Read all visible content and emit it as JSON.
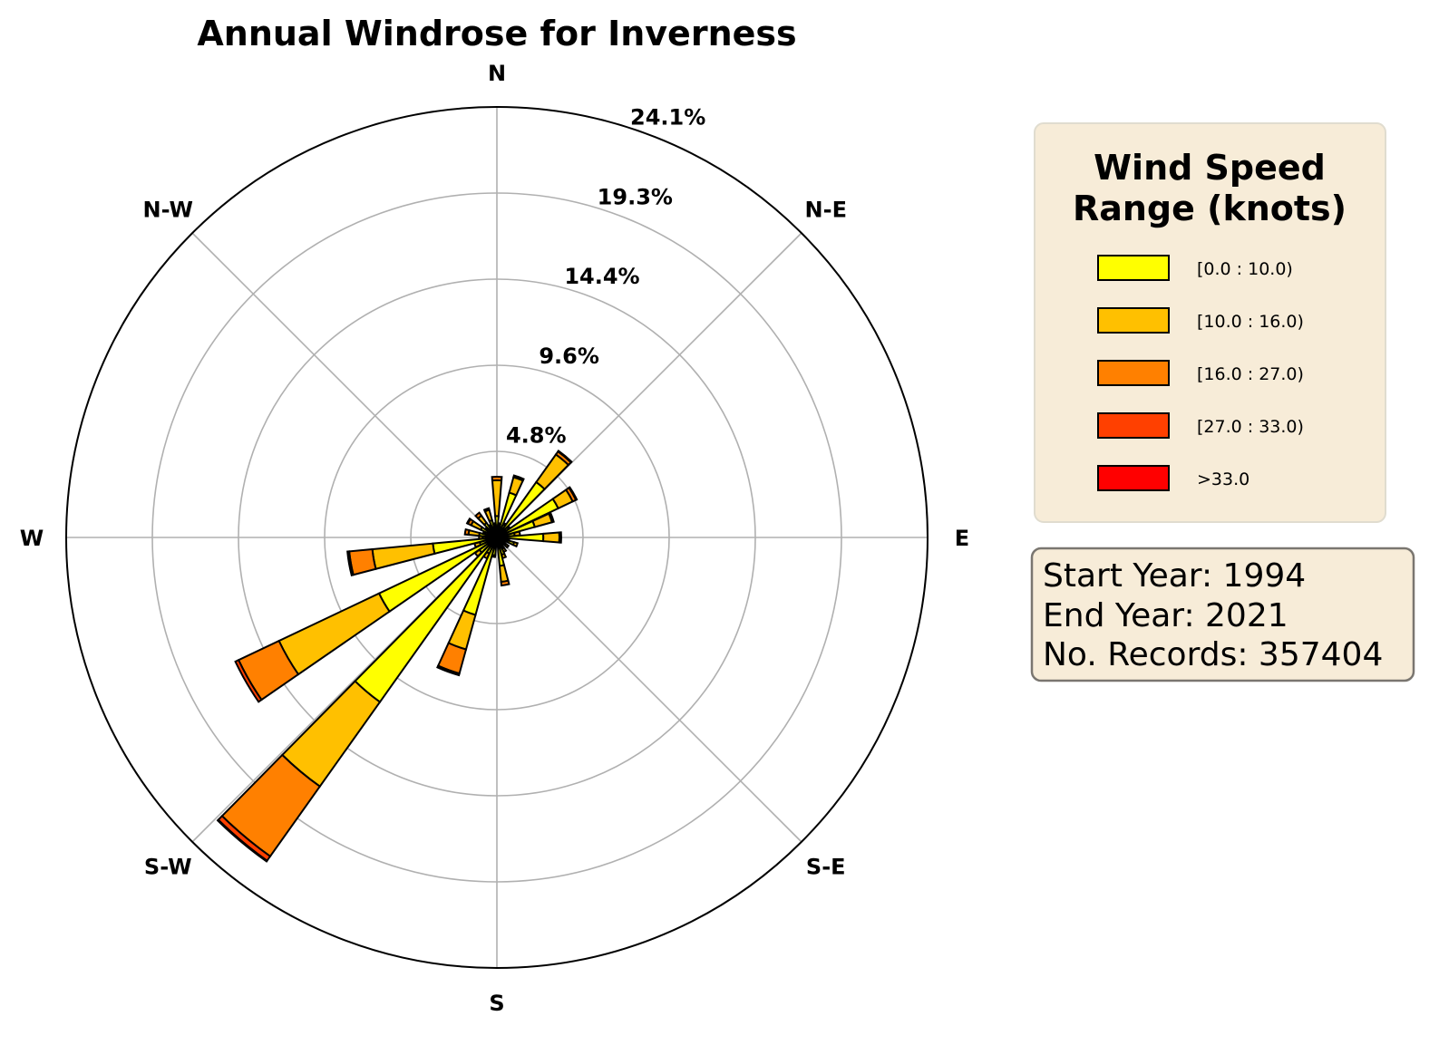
{
  "chart_data": {
    "type": "windrose",
    "title": "Annual Windrose for Inverness",
    "direction_labels": [
      "N",
      "N-E",
      "E",
      "S-E",
      "S",
      "S-W",
      "W",
      "N-W"
    ],
    "radial_ticks": [
      "4.8%",
      "9.6%",
      "14.4%",
      "19.3%",
      "24.1%"
    ],
    "radial_tick_values": [
      4.82,
      9.64,
      14.46,
      19.28,
      24.1
    ],
    "r_max": 24.1,
    "sector_count": 36,
    "legend": {
      "title_line1": "Wind Speed",
      "title_line2": "Range (knots)",
      "bins": [
        {
          "label": "[0.0 : 10.0)",
          "color": "#ffff00"
        },
        {
          "label": "[10.0 : 16.0)",
          "color": "#ffc000"
        },
        {
          "label": "[16.0 : 27.0)",
          "color": "#ff8000"
        },
        {
          "label": "[27.0 : 33.0)",
          "color": "#ff4000"
        },
        {
          "label": ">33.0",
          "color": "#ff0000"
        }
      ]
    },
    "sectors": [
      {
        "dir": 0,
        "values": [
          1.2,
          2.0,
          0.2,
          0.0,
          0.0
        ]
      },
      {
        "dir": 10,
        "values": [
          0.7,
          0.1,
          0.0,
          0.0,
          0.0
        ]
      },
      {
        "dir": 20,
        "values": [
          2.6,
          0.9,
          0.1,
          0.0,
          0.0
        ]
      },
      {
        "dir": 30,
        "values": [
          0.8,
          0.1,
          0.0,
          0.0,
          0.0
        ]
      },
      {
        "dir": 40,
        "values": [
          3.8,
          1.9,
          0.2,
          0.05,
          0.0
        ]
      },
      {
        "dir": 50,
        "values": [
          0.8,
          0.1,
          0.0,
          0.0,
          0.0
        ]
      },
      {
        "dir": 60,
        "values": [
          3.8,
          0.9,
          0.2,
          0.05,
          0.0
        ]
      },
      {
        "dir": 70,
        "values": [
          2.2,
          1.0,
          0.1,
          0.0,
          0.0
        ]
      },
      {
        "dir": 80,
        "values": [
          1.0,
          0.3,
          0.0,
          0.0,
          0.0
        ]
      },
      {
        "dir": 90,
        "values": [
          2.6,
          0.9,
          0.1,
          0.0,
          0.0
        ]
      },
      {
        "dir": 100,
        "values": [
          0.6,
          0.1,
          0.0,
          0.0,
          0.0
        ]
      },
      {
        "dir": 110,
        "values": [
          1.0,
          0.2,
          0.0,
          0.0,
          0.0
        ]
      },
      {
        "dir": 120,
        "values": [
          0.5,
          0.0,
          0.0,
          0.0,
          0.0
        ]
      },
      {
        "dir": 130,
        "values": [
          0.6,
          0.2,
          0.0,
          0.0,
          0.0
        ]
      },
      {
        "dir": 140,
        "values": [
          0.5,
          0.0,
          0.0,
          0.0,
          0.0
        ]
      },
      {
        "dir": 150,
        "values": [
          0.7,
          0.2,
          0.0,
          0.0,
          0.0
        ]
      },
      {
        "dir": 160,
        "values": [
          1.0,
          0.2,
          0.0,
          0.0,
          0.0
        ]
      },
      {
        "dir": 170,
        "values": [
          1.6,
          0.9,
          0.2,
          0.0,
          0.0
        ]
      },
      {
        "dir": 180,
        "values": [
          0.5,
          0.0,
          0.0,
          0.0,
          0.0
        ]
      },
      {
        "dir": 190,
        "values": [
          1.0,
          0.1,
          0.0,
          0.0,
          0.0
        ]
      },
      {
        "dir": 200,
        "values": [
          4.5,
          2.0,
          1.4,
          0.1,
          0.0
        ]
      },
      {
        "dir": 210,
        "values": [
          1.0,
          0.3,
          0.0,
          0.0,
          0.0
        ]
      },
      {
        "dir": 220,
        "values": [
          11.3,
          5.8,
          4.8,
          0.3,
          0.05
        ]
      },
      {
        "dir": 230,
        "values": [
          1.2,
          0.3,
          0.0,
          0.0,
          0.0
        ]
      },
      {
        "dir": 240,
        "values": [
          7.3,
          6.2,
          2.5,
          0.2,
          0.0
        ]
      },
      {
        "dir": 250,
        "values": [
          1.0,
          0.3,
          0.0,
          0.0,
          0.0
        ]
      },
      {
        "dir": 260,
        "values": [
          3.6,
          3.4,
          1.3,
          0.1,
          0.0
        ]
      },
      {
        "dir": 270,
        "values": [
          0.8,
          0.2,
          0.0,
          0.0,
          0.0
        ]
      },
      {
        "dir": 280,
        "values": [
          1.0,
          0.6,
          0.2,
          0.0,
          0.0
        ]
      },
      {
        "dir": 290,
        "values": [
          0.7,
          0.1,
          0.0,
          0.0,
          0.0
        ]
      },
      {
        "dir": 300,
        "values": [
          1.0,
          0.6,
          0.2,
          0.05,
          0.0
        ]
      },
      {
        "dir": 310,
        "values": [
          0.7,
          0.1,
          0.0,
          0.0,
          0.0
        ]
      },
      {
        "dir": 320,
        "values": [
          1.0,
          0.5,
          0.2,
          0.0,
          0.0
        ]
      },
      {
        "dir": 330,
        "values": [
          0.7,
          0.1,
          0.0,
          0.0,
          0.0
        ]
      },
      {
        "dir": 340,
        "values": [
          1.0,
          0.6,
          0.1,
          0.0,
          0.0
        ]
      },
      {
        "dir": 350,
        "values": [
          0.7,
          0.1,
          0.0,
          0.0,
          0.0
        ]
      }
    ]
  },
  "info_box": {
    "start": "Start Year: 1994",
    "end": "End Year: 2021",
    "records": "No. Records: 357404"
  },
  "colors": {
    "legend_bg": "#f7ecd8",
    "grid": "#b0b0b0"
  }
}
